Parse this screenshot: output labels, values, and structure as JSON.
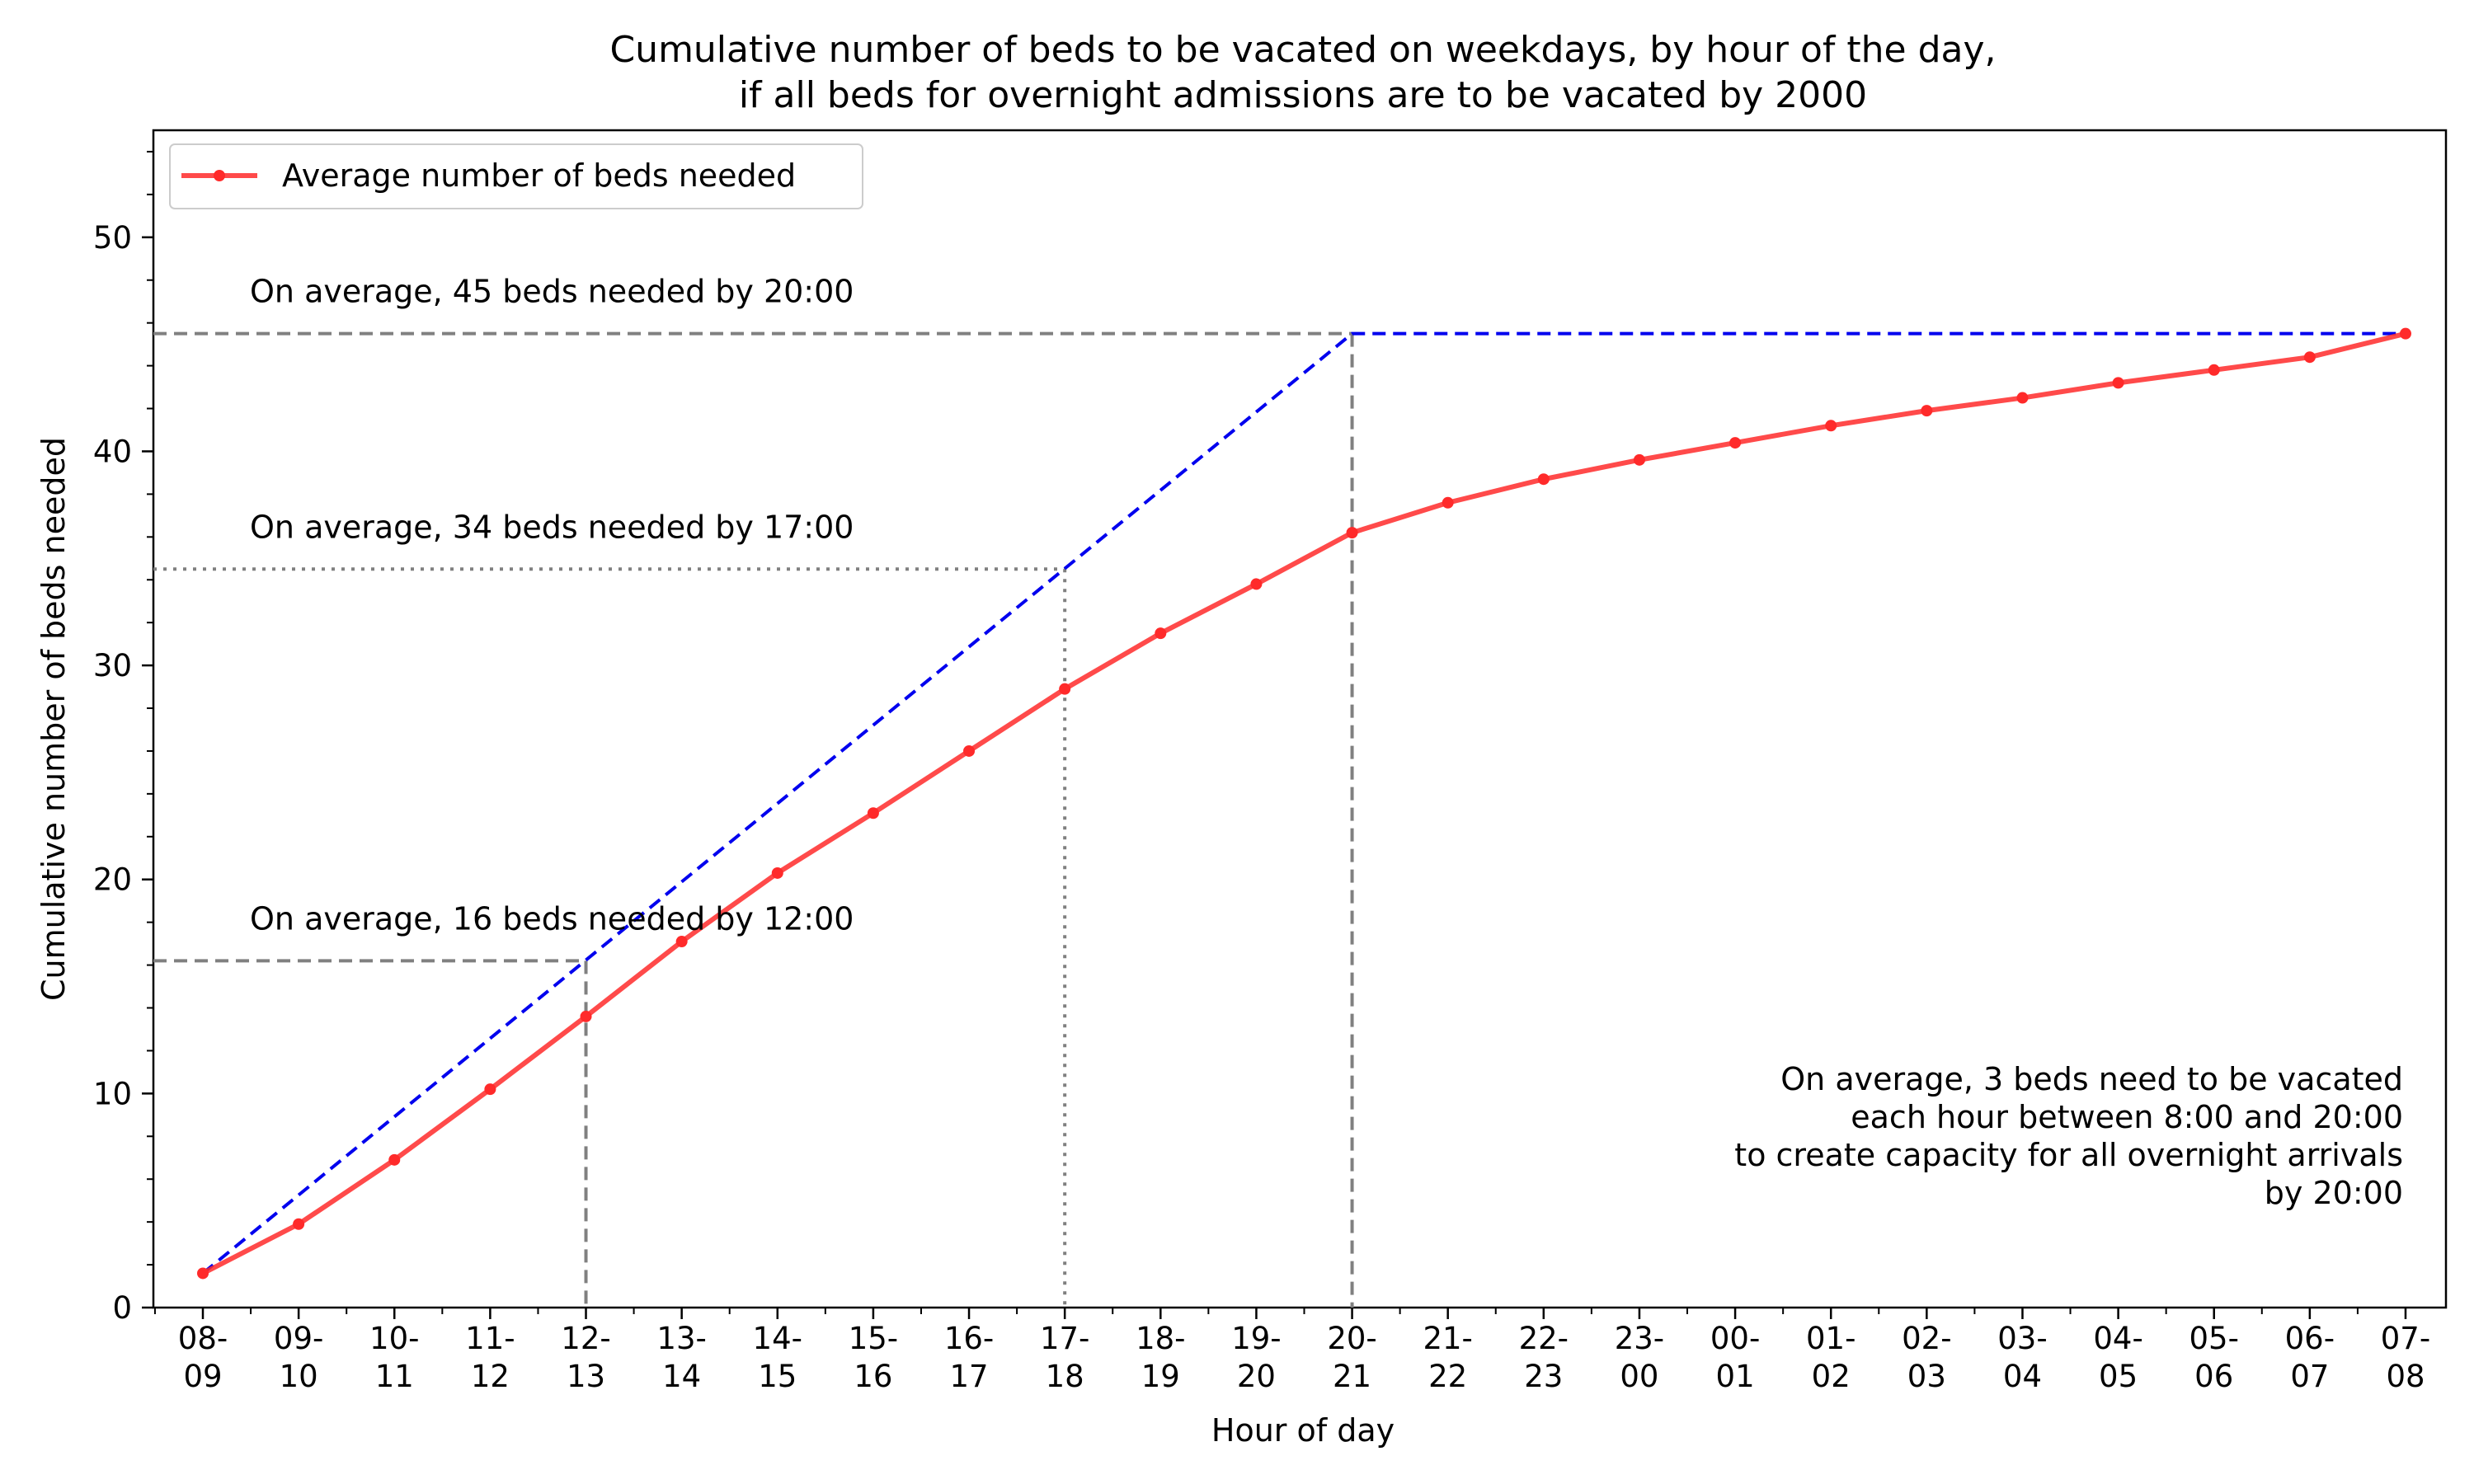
{
  "chart_data": {
    "type": "line",
    "title_lines": [
      "Cumulative number of beds to be vacated on weekdays, by hour of the day,",
      "if all beds for overnight admissions are to be vacated by 2000"
    ],
    "xlabel": "Hour of day",
    "ylabel": "Cumulative number of beds needed",
    "ylim": [
      0,
      55
    ],
    "yticks": [
      0,
      10,
      20,
      30,
      40,
      50
    ],
    "categories": [
      [
        "08-",
        "09"
      ],
      [
        "09-",
        "10"
      ],
      [
        "10-",
        "11"
      ],
      [
        "11-",
        "12"
      ],
      [
        "12-",
        "13"
      ],
      [
        "13-",
        "14"
      ],
      [
        "14-",
        "15"
      ],
      [
        "15-",
        "16"
      ],
      [
        "16-",
        "17"
      ],
      [
        "17-",
        "18"
      ],
      [
        "18-",
        "19"
      ],
      [
        "19-",
        "20"
      ],
      [
        "20-",
        "21"
      ],
      [
        "21-",
        "22"
      ],
      [
        "22-",
        "23"
      ],
      [
        "23-",
        "00"
      ],
      [
        "00-",
        "01"
      ],
      [
        "01-",
        "02"
      ],
      [
        "02-",
        "03"
      ],
      [
        "03-",
        "04"
      ],
      [
        "04-",
        "05"
      ],
      [
        "05-",
        "06"
      ],
      [
        "06-",
        "07"
      ],
      [
        "07-",
        "08"
      ]
    ],
    "series": [
      {
        "name": "Average number of beds needed",
        "color": "#ff2a2a",
        "values": [
          1.6,
          3.9,
          6.9,
          10.2,
          13.6,
          17.1,
          20.3,
          23.1,
          26.0,
          28.9,
          31.5,
          33.8,
          36.2,
          37.6,
          38.7,
          39.6,
          40.4,
          41.2,
          41.9,
          42.5,
          43.2,
          43.8,
          44.4,
          45.5
        ]
      }
    ],
    "target_line": {
      "color": "#0000ee",
      "points": [
        [
          0,
          1.6
        ],
        [
          12,
          45.5
        ],
        [
          23,
          45.5
        ]
      ]
    },
    "reference_lines": [
      {
        "x_index": 12,
        "y": 45.5,
        "style": "dashed",
        "label": "On average, 45 beds needed by 20:00"
      },
      {
        "x_index": 9,
        "y": 34.5,
        "style": "dotted",
        "label": "On average, 34 beds needed by 17:00"
      },
      {
        "x_index": 4,
        "y": 16.2,
        "style": "dashed",
        "label": "On average, 16 beds needed by 12:00"
      }
    ],
    "annotation_lines": [
      "On average, 3 beds need to be vacated",
      "each hour between 8:00 and 20:00",
      "to create capacity for all overnight arrivals",
      "by 20:00"
    ],
    "legend_position": "upper-left",
    "grid": false
  }
}
